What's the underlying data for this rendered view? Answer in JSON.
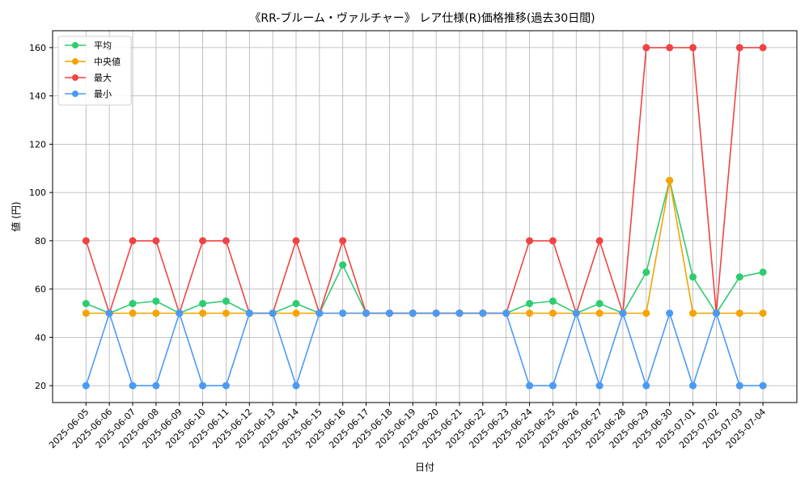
{
  "chart_data": {
    "type": "line",
    "title": "《RR-ブルーム・ヴァルチャー》 レア仕様(R)価格推移(過去30日間)",
    "xlabel": "日付",
    "ylabel": "値 (円)",
    "ylim": [
      13,
      167
    ],
    "yticks": [
      20,
      40,
      60,
      80,
      100,
      120,
      140,
      160
    ],
    "grid": true,
    "legend_position": "top-left",
    "categories": [
      "2025-06-05",
      "2025-06-06",
      "2025-06-07",
      "2025-06-08",
      "2025-06-09",
      "2025-06-10",
      "2025-06-11",
      "2025-06-12",
      "2025-06-13",
      "2025-06-14",
      "2025-06-15",
      "2025-06-16",
      "2025-06-17",
      "2025-06-18",
      "2025-06-19",
      "2025-06-20",
      "2025-06-21",
      "2025-06-22",
      "2025-06-23",
      "2025-06-24",
      "2025-06-25",
      "2025-06-26",
      "2025-06-27",
      "2025-06-28",
      "2025-06-29",
      "2025-06-30",
      "2025-07-01",
      "2025-07-02",
      "2025-07-03",
      "2025-07-04"
    ],
    "series": [
      {
        "name": "平均",
        "color": "#2ecc71",
        "values": [
          54,
          50,
          54,
          55,
          50,
          54,
          55,
          50,
          50,
          54,
          50,
          70,
          50,
          50,
          50,
          50,
          50,
          50,
          50,
          54,
          55,
          50,
          54,
          50,
          67,
          105,
          65,
          50,
          65,
          67
        ]
      },
      {
        "name": "中央値",
        "color": "#f5a300",
        "values": [
          50,
          50,
          50,
          50,
          50,
          50,
          50,
          50,
          50,
          50,
          50,
          50,
          50,
          50,
          50,
          50,
          50,
          50,
          50,
          50,
          50,
          50,
          50,
          50,
          50,
          105,
          50,
          50,
          50,
          50
        ]
      },
      {
        "name": "最大",
        "color": "#ef4444",
        "values": [
          80,
          50,
          80,
          80,
          50,
          80,
          80,
          50,
          50,
          80,
          50,
          80,
          50,
          50,
          50,
          50,
          50,
          50,
          50,
          80,
          80,
          50,
          80,
          50,
          160,
          160,
          160,
          50,
          160,
          160
        ]
      },
      {
        "name": "最小",
        "color": "#4a9af5",
        "values": [
          20,
          50,
          20,
          20,
          50,
          20,
          20,
          50,
          50,
          20,
          50,
          50,
          50,
          50,
          50,
          50,
          50,
          50,
          50,
          20,
          20,
          50,
          20,
          50,
          20,
          50,
          20,
          50,
          20,
          20
        ]
      }
    ]
  }
}
